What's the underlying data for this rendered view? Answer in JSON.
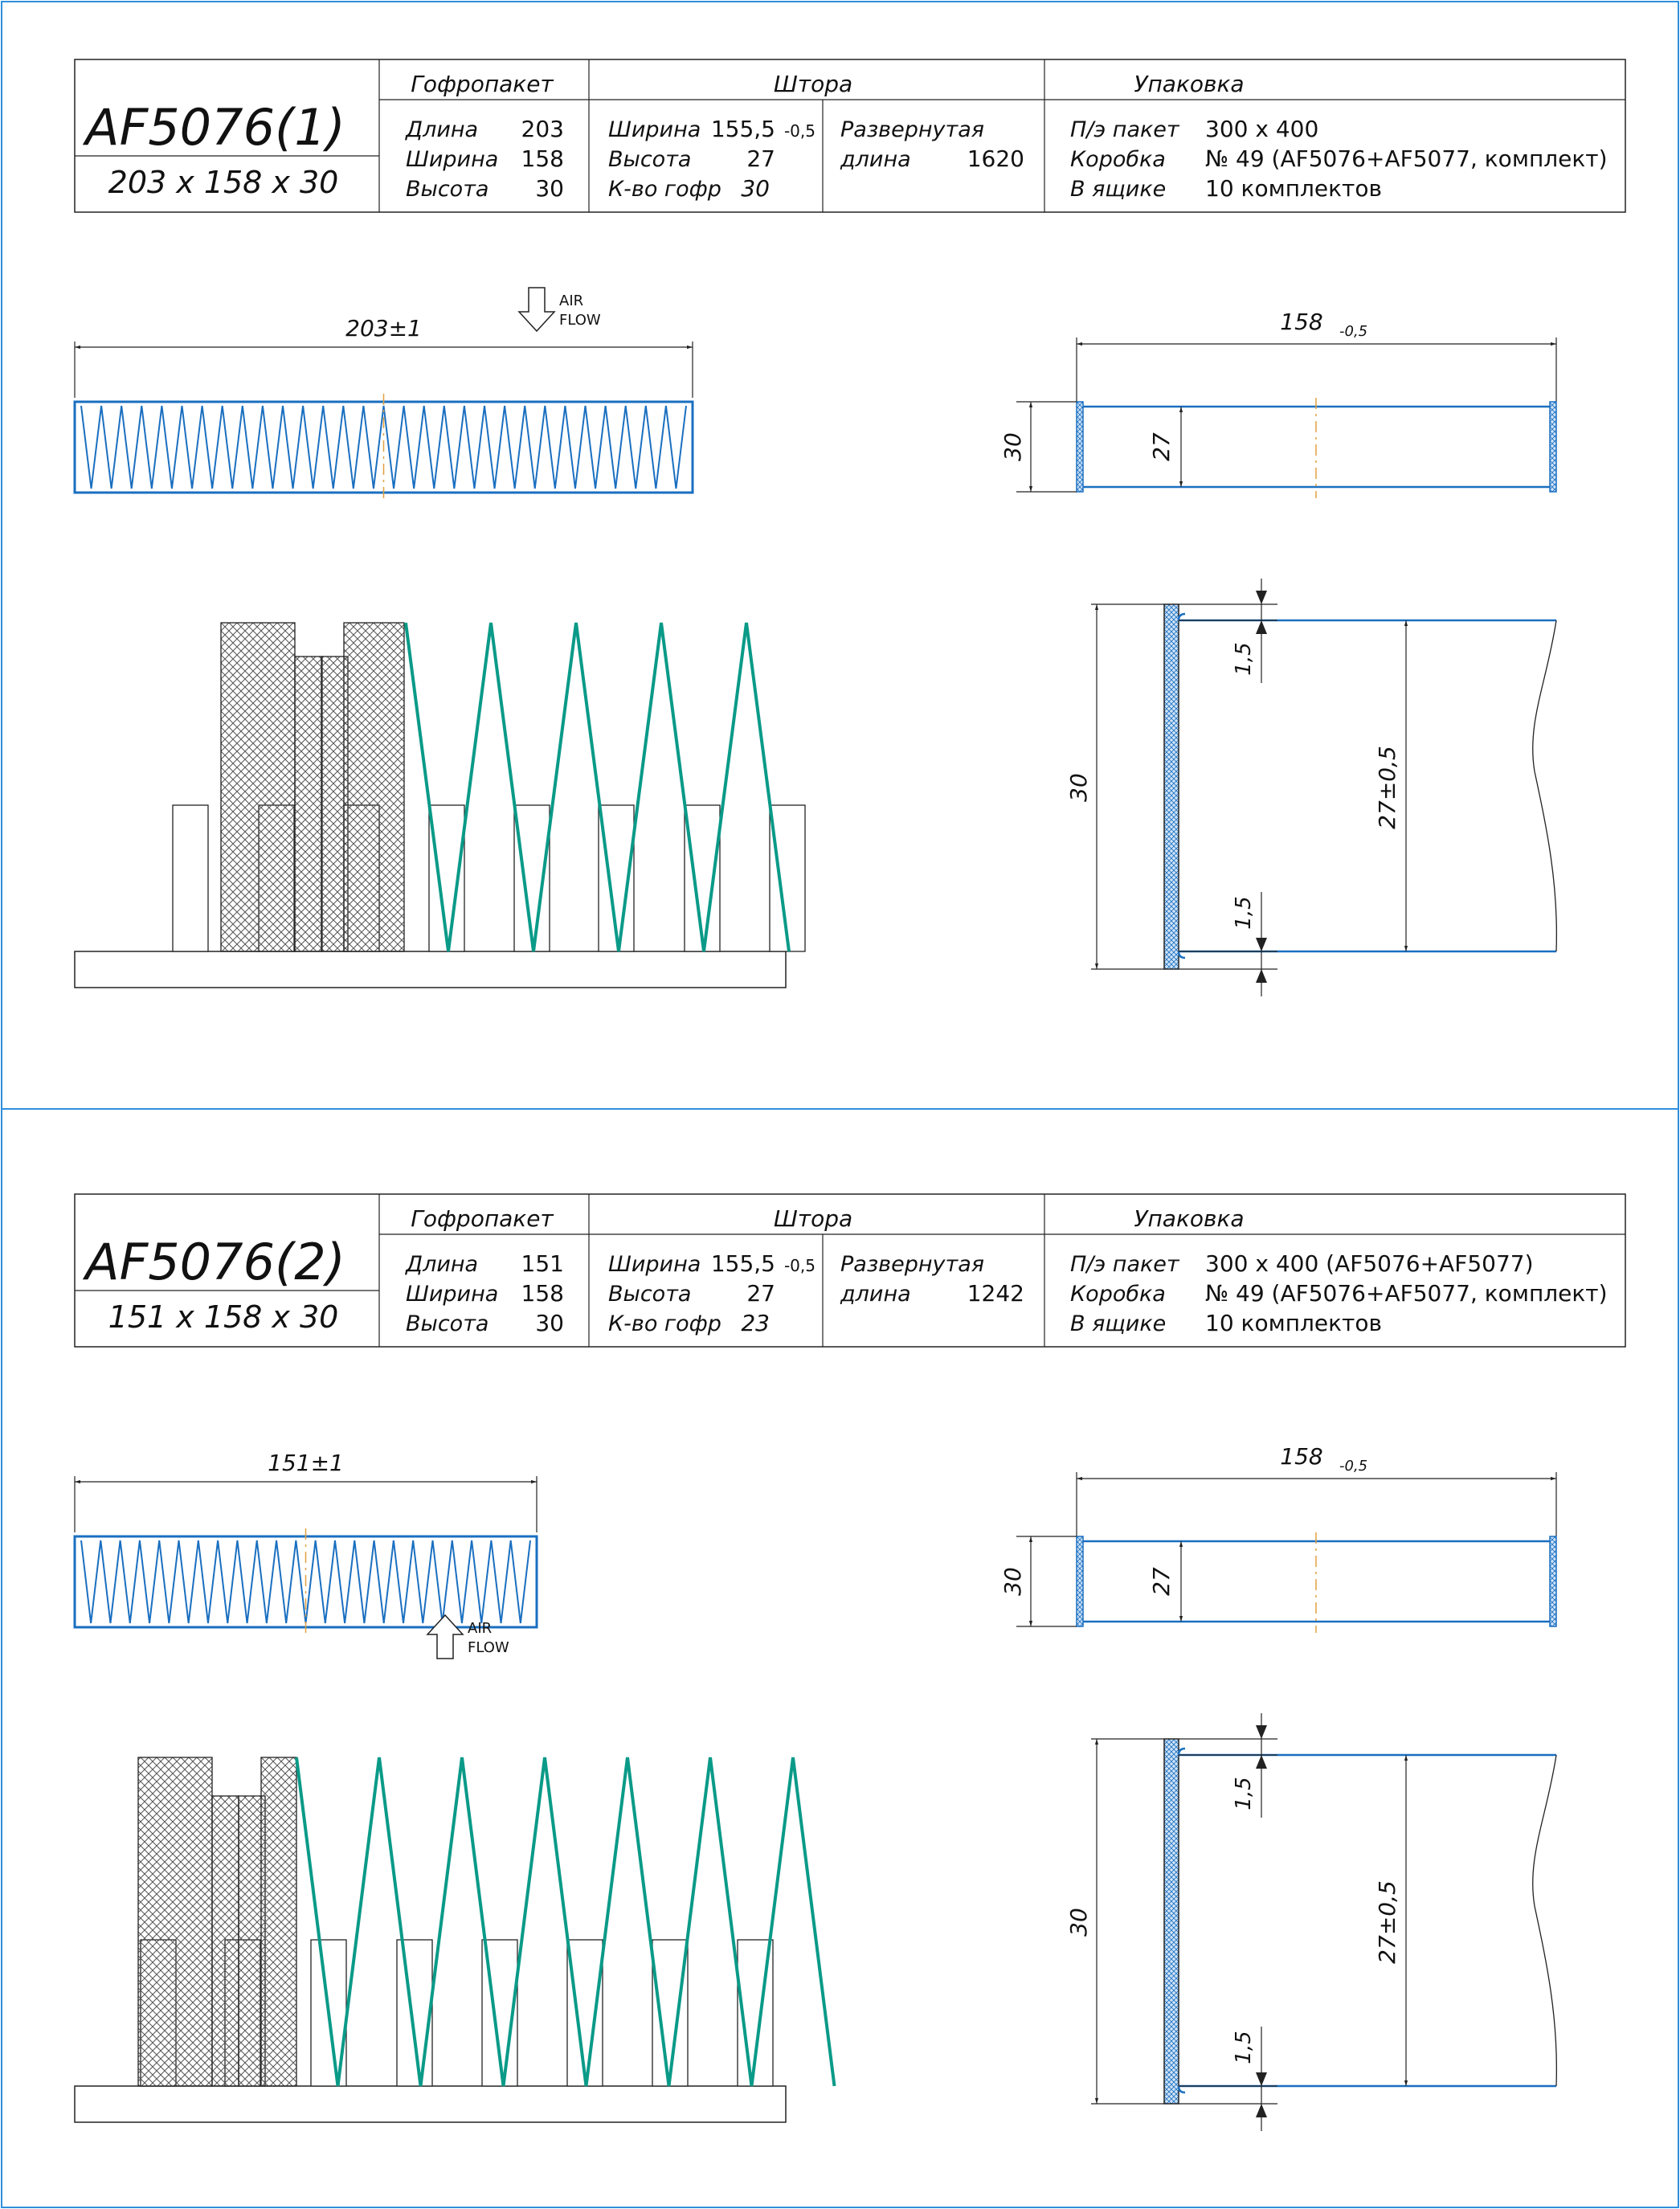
{
  "panels": [
    {
      "id": "1",
      "title": "AF5076(1)",
      "size": "203 x 158 x 30",
      "headers": {
        "gofropaket": "Гофропакет",
        "shtora": "Штора",
        "upakovka": "Упаковка"
      },
      "gofropaket": [
        {
          "label": "Длина",
          "value": "203"
        },
        {
          "label": "Ширина",
          "value": "158"
        },
        {
          "label": "Высота",
          "value": "30"
        }
      ],
      "shtora": [
        {
          "label": "Ширина",
          "value": "155,5",
          "tol": "-0,5"
        },
        {
          "label": "Высота",
          "value": "27",
          "tol": ""
        },
        {
          "label": "К-во гофр",
          "value": "30",
          "tol": ""
        }
      ],
      "razvernutaya": {
        "label1": "Развернутая",
        "label2": "длина",
        "value": "1620"
      },
      "upakovka": [
        {
          "label": "П/э пакет",
          "value": "300 x 400"
        },
        {
          "label": "Коробка",
          "value": "№ 49 (AF5076+AF5077, комплект)"
        },
        {
          "label": "В ящике",
          "value": "10 комплектов"
        }
      ],
      "top_view": {
        "length_dim": "203±1",
        "airflow_line1": "AIR",
        "airflow_line2": "FLOW",
        "airflow_dir": "down",
        "pleats": 30
      },
      "side_view": {
        "width_dim": "158",
        "width_tol": "-0,5",
        "height_dim": "30",
        "inner_dim": "27"
      },
      "detail_view": {
        "height_dim": "30",
        "edge_dim_top": "1,5",
        "edge_dim_bottom": "1,5",
        "inner_dim": "27±0,5"
      }
    },
    {
      "id": "2",
      "title": "AF5076(2)",
      "size": "151 x 158 x 30",
      "headers": {
        "gofropaket": "Гофропакет",
        "shtora": "Штора",
        "upakovka": "Упаковка"
      },
      "gofropaket": [
        {
          "label": "Длина",
          "value": "151"
        },
        {
          "label": "Ширина",
          "value": "158"
        },
        {
          "label": "Высота",
          "value": "30"
        }
      ],
      "shtora": [
        {
          "label": "Ширина",
          "value": "155,5",
          "tol": "-0,5"
        },
        {
          "label": "Высота",
          "value": "27",
          "tol": ""
        },
        {
          "label": "К-во гофр",
          "value": "23",
          "tol": ""
        }
      ],
      "razvernutaya": {
        "label1": "Развернутая",
        "label2": "длина",
        "value": "1242"
      },
      "upakovka": [
        {
          "label": "П/э пакет",
          "value": "300 x 400 (AF5076+AF5077)"
        },
        {
          "label": "Коробка",
          "value": "№ 49 (AF5076+AF5077, комплект)"
        },
        {
          "label": "В ящике",
          "value": "10 комплектов"
        }
      ],
      "top_view": {
        "length_dim": "151±1",
        "airflow_line1": "AIR",
        "airflow_line2": "FLOW",
        "airflow_dir": "up",
        "pleats": 23
      },
      "side_view": {
        "width_dim": "158",
        "width_tol": "-0,5",
        "height_dim": "30",
        "inner_dim": "27"
      },
      "detail_view": {
        "height_dim": "30",
        "edge_dim_top": "1,5",
        "edge_dim_bottom": "1,5",
        "inner_dim": "27±0,5"
      }
    }
  ],
  "colors": {
    "pleat": "#1a6fc0",
    "pleat_detail": "#0a9a88",
    "frame": "#1a6fc0",
    "border": "#2f8fdc",
    "line": "#111111",
    "centerline": "#e0a040"
  }
}
